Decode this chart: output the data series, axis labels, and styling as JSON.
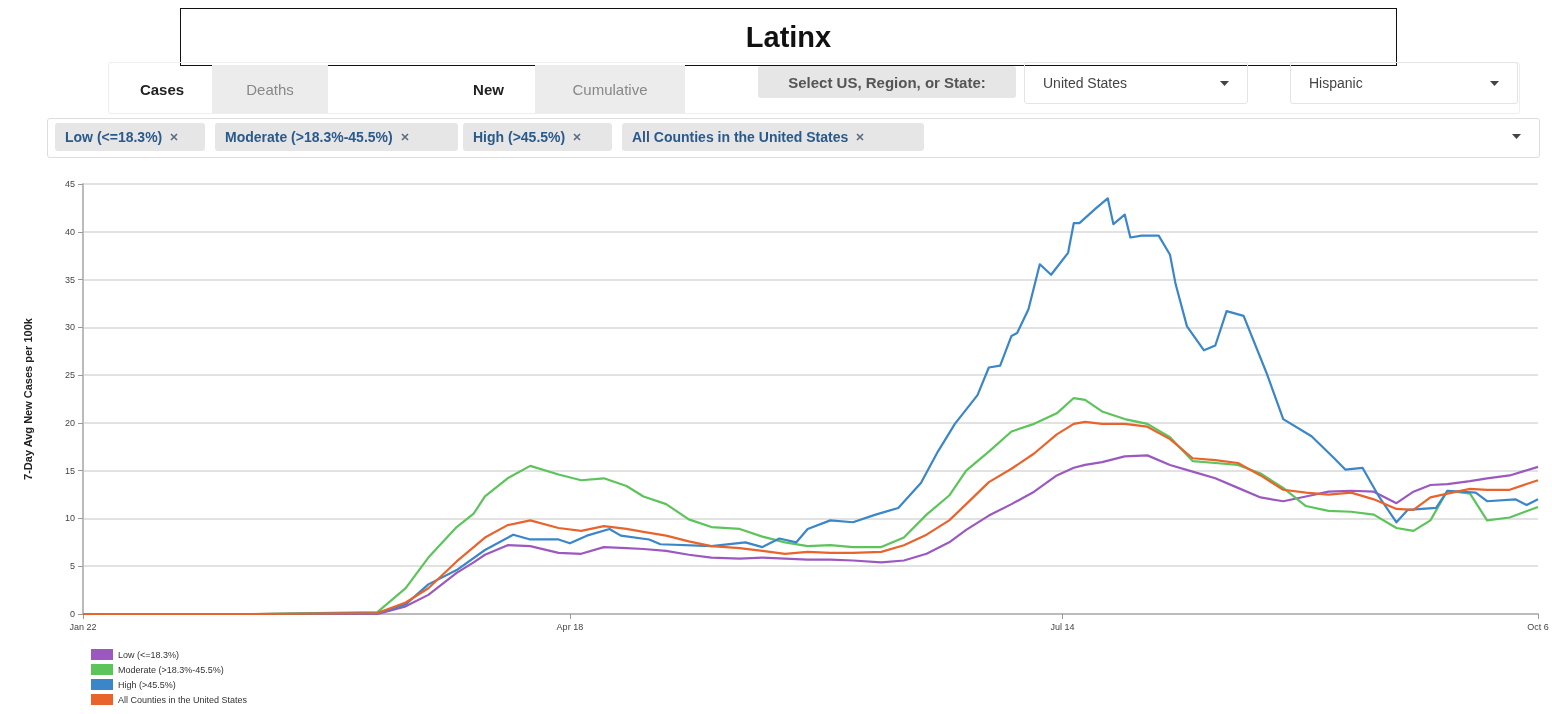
{
  "chart_data": {
    "type": "line",
    "title": "Latinx",
    "ylabel": "7-Day Avg New Cases per 100k",
    "annotations": [
      "Cases",
      "Deaths",
      "New",
      "Cumulative",
      "Select US, Region, or State:",
      "United States",
      "Hispanic",
      "Low (<=18.3%)",
      "Moderate (>18.3%-45.5%)",
      "High (>45.5%)",
      "All Counties in the United States"
    ],
    "x": [
      "--01-22",
      "--02-21",
      "--03-15",
      "--03-20",
      "--03-24",
      "--03-29",
      "--04-01",
      "--04-03",
      "--04-07",
      "--04-11",
      "--04-16",
      "--04-20",
      "--04-24",
      "--04-28",
      "--05-01",
      "--05-05",
      "--05-09",
      "--05-13",
      "--05-18",
      "--05-22",
      "--05-26",
      "--05-30",
      "--06-03",
      "--06-07",
      "--06-12",
      "--06-16",
      "--06-20",
      "--06-24",
      "--06-27",
      "--07-01",
      "--07-05",
      "--07-09",
      "--07-13",
      "--07-16",
      "--07-18",
      "--07-21",
      "--07-25",
      "--07-29",
      "--08-02",
      "--08-06",
      "--08-10",
      "--08-14",
      "--08-18",
      "--08-22",
      "--08-26",
      "--08-30",
      "--09-03",
      "--09-07",
      "--09-11",
      "--09-14",
      "--09-17",
      "--09-20",
      "--09-24",
      "--09-27",
      "--10-01",
      "--10-06"
    ],
    "series": [
      {
        "name": "Low (<=18.3%)",
        "color": "#9b59c0",
        "values": [
          0,
          0,
          0,
          0.8,
          2.0,
          4.3,
          5.4,
          6.2,
          7.2,
          7.1,
          6.4,
          6.3,
          7.0,
          6.9,
          6.8,
          6.6,
          6.2,
          5.9,
          5.8,
          5.9,
          5.8,
          5.7,
          5.7,
          5.6,
          5.4,
          5.6,
          6.3,
          7.5,
          8.8,
          10.3,
          11.5,
          12.8,
          14.5,
          15.3,
          15.6,
          15.9,
          16.5,
          16.6,
          15.6,
          14.9,
          14.2,
          13.2,
          12.2,
          11.8,
          12.3,
          12.8,
          12.9,
          12.8,
          11.6,
          12.8,
          13.5,
          13.6,
          13.9,
          14.2,
          14.5,
          15.4
        ]
      },
      {
        "name": "Moderate (>18.3%-45.5%)",
        "color": "#5cc45a",
        "values": [
          0,
          0,
          0.2,
          2.7,
          5.9,
          9.1,
          10.5,
          12.3,
          14.2,
          15.5,
          14.6,
          14.0,
          14.2,
          13.4,
          12.3,
          11.5,
          9.9,
          9.1,
          8.9,
          8.1,
          7.5,
          7.1,
          7.2,
          7.0,
          7.0,
          8.0,
          10.4,
          12.4,
          15.0,
          17.0,
          19.1,
          19.9,
          21.0,
          22.6,
          22.4,
          21.2,
          20.4,
          19.9,
          18.5,
          16.0,
          15.8,
          15.6,
          14.7,
          13.2,
          11.3,
          10.8,
          10.7,
          10.4,
          9.0,
          8.7,
          9.8,
          12.9,
          12.6,
          9.8,
          10.1,
          11.2
        ]
      },
      {
        "name": "High (>45.5%)",
        "color": "#3a86c8",
        "x": [
          "--01-22",
          "--02-21",
          "--03-15",
          "--03-20",
          "--03-24",
          "--03-29",
          "--04-03",
          "--04-08",
          "--04-11",
          "--04-16",
          "--04-18",
          "--04-21",
          "--04-25",
          "--04-27",
          "--05-02",
          "--05-04",
          "--05-13",
          "--05-19",
          "--05-22",
          "--05-25",
          "--05-28",
          "--05-30",
          "--06-03",
          "--06-07",
          "--06-11",
          "--06-15",
          "--06-17",
          "--06-19",
          "--06-22",
          "--06-25",
          "--06-29",
          "--07-01",
          "--07-03",
          "--07-05",
          "--07-06",
          "--07-08",
          "--07-10",
          "--07-12",
          "--07-15",
          "--07-16",
          "--07-17",
          "--07-20",
          "--07-22",
          "--07-23",
          "--07-25",
          "--07-26",
          "--07-28",
          "--07-31",
          "--08-02",
          "--08-03",
          "--08-05",
          "--08-08",
          "--08-10",
          "--08-12",
          "--08-15",
          "--08-19",
          "--08-22",
          "--08-27",
          "--08-31",
          "--09-02",
          "--09-05",
          "--09-08",
          "--09-11",
          "--09-13",
          "--09-18",
          "--09-20",
          "--09-25",
          "--09-27",
          "--10-02",
          "--10-04",
          "--10-06"
        ],
        "values": [
          0,
          0,
          0.1,
          1.0,
          3.1,
          4.6,
          6.7,
          8.3,
          7.8,
          7.8,
          7.4,
          8.2,
          8.9,
          8.2,
          7.8,
          7.3,
          7.1,
          7.5,
          7.0,
          7.9,
          7.5,
          8.9,
          9.8,
          9.6,
          10.4,
          11.1,
          12.4,
          13.7,
          17.0,
          19.9,
          22.9,
          25.8,
          26.0,
          29.1,
          29.4,
          31.9,
          36.6,
          35.5,
          37.8,
          40.9,
          40.9,
          42.5,
          43.5,
          40.8,
          41.8,
          39.4,
          39.6,
          39.6,
          37.6,
          34.5,
          30.1,
          27.6,
          28.1,
          31.7,
          31.2,
          25.3,
          20.4,
          18.6,
          16.3,
          15.1,
          15.3,
          12.2,
          9.6,
          10.9,
          11.1,
          12.9,
          12.7,
          11.8,
          12.0,
          11.4,
          12.0
        ]
      },
      {
        "name": "All Counties in the United States",
        "color": "#e8642c",
        "values": [
          0,
          0,
          0.1,
          1.2,
          2.7,
          5.5,
          7.0,
          8.0,
          9.3,
          9.8,
          9.0,
          8.7,
          9.2,
          8.9,
          8.6,
          8.2,
          7.6,
          7.1,
          6.9,
          6.6,
          6.3,
          6.5,
          6.4,
          6.4,
          6.5,
          7.2,
          8.3,
          9.8,
          11.5,
          13.8,
          15.2,
          16.8,
          18.8,
          19.9,
          20.1,
          19.9,
          19.9,
          19.6,
          18.3,
          16.3,
          16.1,
          15.8,
          14.5,
          13.0,
          12.7,
          12.5,
          12.7,
          12.0,
          11.0,
          10.9,
          12.2,
          12.6,
          13.1,
          13.0,
          13.0,
          14.0
        ]
      }
    ],
    "xlim": [
      "--01-22",
      "--10-06"
    ],
    "xticks": [
      {
        "value": "--01-22",
        "label": "Jan 22"
      },
      {
        "value": "--04-18",
        "label": "Apr 18"
      },
      {
        "value": "--07-14",
        "label": "Jul 14"
      },
      {
        "value": "--10-06",
        "label": "Oct 6"
      }
    ],
    "ylim": [
      0,
      45
    ],
    "yticks": [
      0,
      5,
      10,
      15,
      20,
      25,
      30,
      35,
      40,
      45
    ],
    "grid": "y",
    "legend": "bottom left"
  }
}
